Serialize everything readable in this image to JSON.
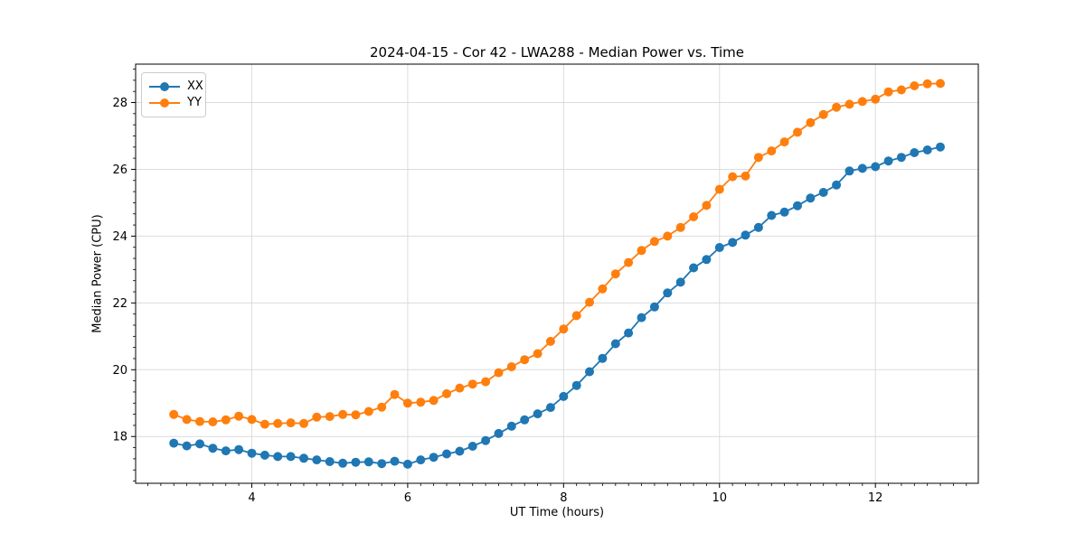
{
  "chart_data": {
    "type": "line",
    "title": "2024-04-15 - Cor 42 - LWA288 - Median Power vs. Time",
    "xlabel": "UT Time (hours)",
    "ylabel": "Median Power (CPU)",
    "xlim": [
      2.51,
      13.32
    ],
    "ylim": [
      16.6,
      29.15
    ],
    "x_ticks": [
      4,
      6,
      8,
      10,
      12
    ],
    "y_ticks": [
      18,
      20,
      22,
      24,
      26,
      28
    ],
    "grid": true,
    "legend_position": "upper left",
    "x": [
      3.0,
      3.167,
      3.333,
      3.5,
      3.667,
      3.833,
      4.0,
      4.167,
      4.333,
      4.5,
      4.667,
      4.833,
      5.0,
      5.167,
      5.333,
      5.5,
      5.667,
      5.833,
      6.0,
      6.167,
      6.333,
      6.5,
      6.667,
      6.833,
      7.0,
      7.167,
      7.333,
      7.5,
      7.667,
      7.833,
      8.0,
      8.167,
      8.333,
      8.5,
      8.667,
      8.833,
      9.0,
      9.167,
      9.333,
      9.5,
      9.667,
      9.833,
      10.0,
      10.167,
      10.333,
      10.5,
      10.667,
      10.833,
      11.0,
      11.167,
      11.333,
      11.5,
      11.667,
      11.833,
      12.0,
      12.167,
      12.333,
      12.5,
      12.667,
      12.833
    ],
    "series": [
      {
        "name": "XX",
        "color": "#1f77b4",
        "values": [
          17.8,
          17.72,
          17.78,
          17.65,
          17.57,
          17.61,
          17.5,
          17.44,
          17.4,
          17.4,
          17.35,
          17.3,
          17.25,
          17.2,
          17.23,
          17.24,
          17.19,
          17.26,
          17.17,
          17.3,
          17.38,
          17.48,
          17.56,
          17.71,
          17.88,
          18.09,
          18.31,
          18.5,
          18.68,
          18.87,
          19.2,
          19.53,
          19.94,
          20.34,
          20.78,
          21.1,
          21.56,
          21.88,
          22.3,
          22.62,
          23.05,
          23.3,
          23.66,
          23.81,
          24.03,
          24.26,
          24.62,
          24.72,
          24.91,
          25.14,
          25.31,
          25.53,
          25.95,
          26.03,
          26.08,
          26.25,
          26.36,
          26.5,
          26.58,
          26.67
        ]
      },
      {
        "name": "YY",
        "color": "#ff7f0e",
        "values": [
          18.66,
          18.51,
          18.45,
          18.44,
          18.5,
          18.61,
          18.51,
          18.37,
          18.39,
          18.41,
          18.39,
          18.58,
          18.6,
          18.66,
          18.65,
          18.75,
          18.88,
          19.26,
          19.0,
          19.03,
          19.08,
          19.28,
          19.45,
          19.57,
          19.64,
          19.91,
          20.09,
          20.3,
          20.48,
          20.85,
          21.22,
          21.62,
          22.02,
          22.42,
          22.87,
          23.21,
          23.57,
          23.84,
          24.0,
          24.26,
          24.58,
          24.92,
          25.4,
          25.78,
          25.8,
          26.36,
          26.55,
          26.82,
          27.11,
          27.4,
          27.64,
          27.86,
          27.95,
          28.03,
          28.1,
          28.32,
          28.38,
          28.5,
          28.56,
          28.57
        ]
      }
    ],
    "style": {
      "grid_color": "#dcdcdc",
      "spine_color": "#000000",
      "tick_color": "#000000",
      "marker_radius": 5,
      "line_width": 1.8
    }
  }
}
